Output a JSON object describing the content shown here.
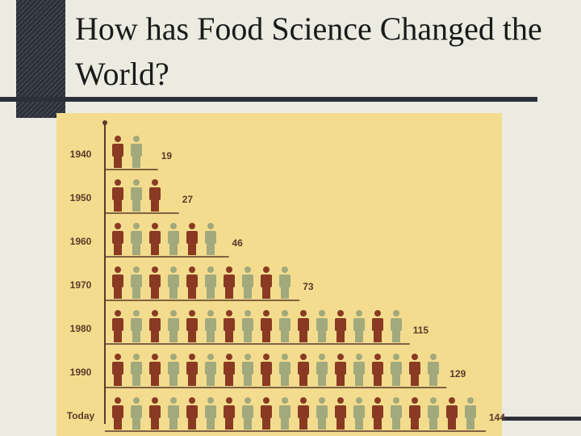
{
  "title": "How has Food Science Changed the World?",
  "chart_data": {
    "type": "pictograph",
    "categories": [
      "1940",
      "1950",
      "1960",
      "1970",
      "1980",
      "1990",
      "Today"
    ],
    "values": [
      19,
      27,
      46,
      73,
      115,
      129,
      144
    ],
    "colors": [
      "#8a3a22",
      "#a2a97c"
    ]
  }
}
